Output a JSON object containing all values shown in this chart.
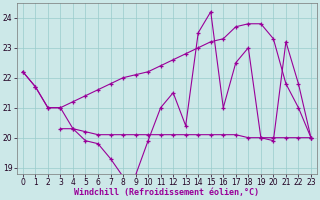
{
  "xlabel": "Windchill (Refroidissement éolien,°C)",
  "bg_color": "#cce8e8",
  "grid_color": "#99cccc",
  "line_color": "#990099",
  "ylim": [
    18.8,
    24.5
  ],
  "xlim": [
    -0.5,
    23.5
  ],
  "yticks": [
    19,
    20,
    21,
    22,
    23,
    24
  ],
  "xticks": [
    0,
    1,
    2,
    3,
    4,
    5,
    6,
    7,
    8,
    9,
    10,
    11,
    12,
    13,
    14,
    15,
    16,
    17,
    18,
    19,
    20,
    21,
    22,
    23
  ],
  "series1_x": [
    0,
    1,
    2,
    3,
    4,
    5,
    6,
    7,
    8,
    9,
    10,
    11,
    12,
    13,
    14,
    15,
    16,
    17,
    18,
    19,
    20,
    21,
    22,
    23
  ],
  "series1_y": [
    22.2,
    21.7,
    21.0,
    21.0,
    20.3,
    19.9,
    19.8,
    19.3,
    18.7,
    18.75,
    19.9,
    21.0,
    21.5,
    20.4,
    23.5,
    24.2,
    21.0,
    22.5,
    23.0,
    20.0,
    19.9,
    23.2,
    21.8,
    20.0
  ],
  "series2_x": [
    0,
    1,
    2,
    3,
    4,
    5,
    6,
    7,
    8,
    9,
    10,
    11,
    12,
    13,
    14,
    15,
    16,
    17,
    18,
    19,
    20,
    21,
    22,
    23
  ],
  "series2_y": [
    22.2,
    21.7,
    21.0,
    21.0,
    21.2,
    21.4,
    21.6,
    21.8,
    22.0,
    22.1,
    22.2,
    22.4,
    22.6,
    22.8,
    23.0,
    23.2,
    23.3,
    23.7,
    23.8,
    23.8,
    23.3,
    21.8,
    21.0,
    20.0
  ],
  "series3_x": [
    3,
    4,
    5,
    6,
    7,
    8,
    9,
    10,
    11,
    12,
    13,
    14,
    15,
    16,
    17,
    18,
    19,
    20,
    21,
    22,
    23
  ],
  "series3_y": [
    20.3,
    20.3,
    20.2,
    20.1,
    20.1,
    20.1,
    20.1,
    20.1,
    20.1,
    20.1,
    20.1,
    20.1,
    20.1,
    20.1,
    20.1,
    20.0,
    20.0,
    20.0,
    20.0,
    20.0,
    20.0
  ],
  "marker": "+",
  "markersize": 3.5,
  "linewidth": 0.8,
  "tick_fontsize": 5.5,
  "label_fontsize": 6.0
}
